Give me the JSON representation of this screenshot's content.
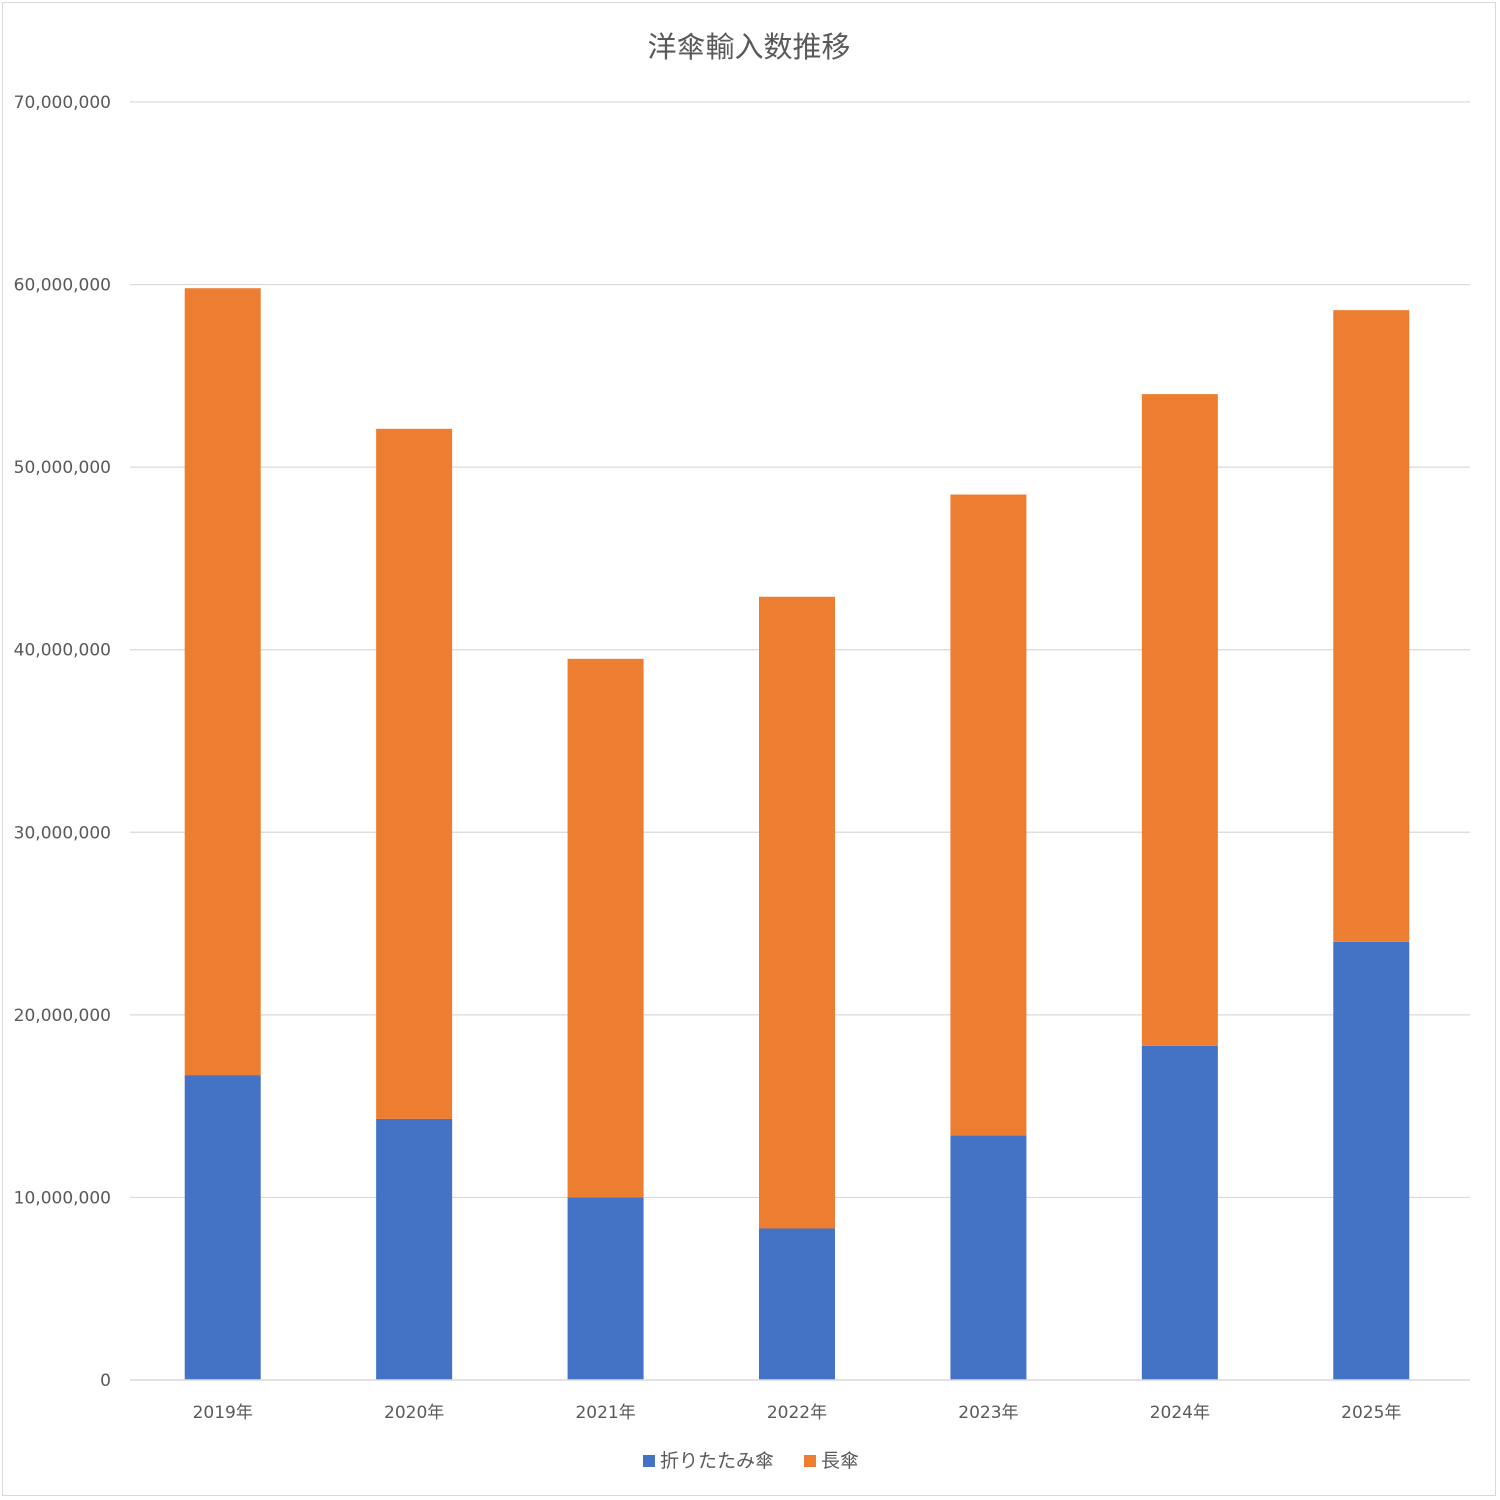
{
  "chart_data": {
    "type": "bar",
    "stacked": true,
    "title": "洋傘輸入数推移",
    "categories": [
      "2019年",
      "2020年",
      "2021年",
      "2022年",
      "2023年",
      "2024年",
      "2025年"
    ],
    "series": [
      {
        "name": "折りたたみ傘",
        "color": "#4472c4",
        "values": [
          16700000,
          14300000,
          10000000,
          8300000,
          13400000,
          18300000,
          24000000
        ]
      },
      {
        "name": "長傘",
        "color": "#ed7d31",
        "values": [
          43100000,
          37800000,
          29500000,
          34600000,
          35100000,
          35700000,
          34600000
        ]
      }
    ],
    "y_ticks": [
      "0",
      "10,000,000",
      "20,000,000",
      "30,000,000",
      "40,000,000",
      "50,000,000",
      "60,000,000",
      "70,000,000"
    ],
    "ylim": [
      0,
      70000000
    ],
    "grid": true,
    "legend_position": "bottom",
    "xlabel": "",
    "ylabel": ""
  }
}
